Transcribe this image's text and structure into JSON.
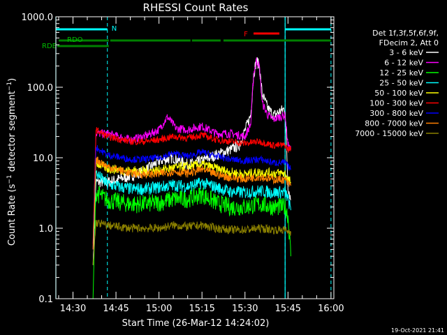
{
  "chart_data": {
    "type": "line",
    "title": "RHESSI Count Rates",
    "xlabel": "Start Time (26-Mar-12 14:24:02)",
    "ylabel": "Count Rate (s⁻¹ detector segment⁻¹)",
    "y_scale": "log",
    "ylim": [
      0.1,
      1000
    ],
    "y_ticks": [
      "0.1",
      "1.0",
      "10.0",
      "100.0",
      "1000.0"
    ],
    "xlim": [
      "14:24:02",
      "16:01:00"
    ],
    "x_ticks": [
      "14:30",
      "14:45",
      "15:00",
      "15:15",
      "15:30",
      "15:45",
      "16:00"
    ],
    "grid": false,
    "legend_position": "right",
    "legend_header": [
      "Det 1f,3f,5f,6f,9f,",
      "FDecim 2, Att 0"
    ],
    "data_window": [
      "14:37:00",
      "15:46:30"
    ],
    "series": [
      {
        "name": "3 - 6 keV",
        "color": "#ffffff",
        "points": [
          [
            "14:37",
            0.3
          ],
          [
            "14:38",
            4.5
          ],
          [
            "14:42",
            4.5
          ],
          [
            "14:50",
            5.5
          ],
          [
            "14:55",
            6.5
          ],
          [
            "15:00",
            9
          ],
          [
            "15:05",
            10
          ],
          [
            "15:10",
            8
          ],
          [
            "15:15",
            9
          ],
          [
            "15:20",
            11
          ],
          [
            "15:25",
            13
          ],
          [
            "15:28",
            15
          ],
          [
            "15:32",
            40
          ],
          [
            "15:33",
            150
          ],
          [
            "15:34",
            240
          ],
          [
            "15:35",
            200
          ],
          [
            "15:36",
            80
          ],
          [
            "15:38",
            50
          ],
          [
            "15:40",
            40
          ],
          [
            "15:42",
            45
          ],
          [
            "15:44",
            50
          ],
          [
            "15:45",
            4
          ],
          [
            "15:46",
            2.5
          ]
        ]
      },
      {
        "name": "6 - 12 keV",
        "color": "#ff00ff",
        "points": [
          [
            "14:37",
            0.6
          ],
          [
            "14:38",
            22
          ],
          [
            "14:42",
            22
          ],
          [
            "14:50",
            18
          ],
          [
            "14:55",
            20
          ],
          [
            "15:00",
            25
          ],
          [
            "15:03",
            38
          ],
          [
            "15:06",
            26
          ],
          [
            "15:10",
            25
          ],
          [
            "15:15",
            28
          ],
          [
            "15:20",
            22
          ],
          [
            "15:25",
            22
          ],
          [
            "15:30",
            20
          ],
          [
            "15:32",
            30
          ],
          [
            "15:33",
            150
          ],
          [
            "15:34",
            240
          ],
          [
            "15:35",
            200
          ],
          [
            "15:36",
            60
          ],
          [
            "15:38",
            40
          ],
          [
            "15:40",
            35
          ],
          [
            "15:42",
            38
          ],
          [
            "15:44",
            40
          ],
          [
            "15:45",
            15
          ],
          [
            "15:46",
            13
          ]
        ]
      },
      {
        "name": "12 - 25 keV",
        "color": "#00ff00",
        "points": [
          [
            "14:37",
            0.1
          ],
          [
            "14:38",
            3.2
          ],
          [
            "14:42",
            2.5
          ],
          [
            "14:50",
            2.2
          ],
          [
            "14:55",
            2.2
          ],
          [
            "15:00",
            2.3
          ],
          [
            "15:05",
            2.6
          ],
          [
            "15:10",
            2.6
          ],
          [
            "15:15",
            3.0
          ],
          [
            "15:20",
            2.3
          ],
          [
            "15:25",
            2.0
          ],
          [
            "15:30",
            2.0
          ],
          [
            "15:35",
            2.2
          ],
          [
            "15:40",
            2.0
          ],
          [
            "15:44",
            2.0
          ],
          [
            "15:45",
            1.5
          ],
          [
            "15:46",
            0.4
          ]
        ]
      },
      {
        "name": "25 - 50 keV",
        "color": "#00ffff",
        "points": [
          [
            "14:37",
            0.5
          ],
          [
            "14:38",
            6
          ],
          [
            "14:42",
            4.2
          ],
          [
            "14:50",
            3.6
          ],
          [
            "14:55",
            3.6
          ],
          [
            "15:00",
            3.8
          ],
          [
            "15:05",
            4.1
          ],
          [
            "15:10",
            3.9
          ],
          [
            "15:15",
            4.4
          ],
          [
            "15:20",
            3.8
          ],
          [
            "15:25",
            3.3
          ],
          [
            "15:30",
            3.2
          ],
          [
            "15:35",
            3.4
          ],
          [
            "15:40",
            3.2
          ],
          [
            "15:44",
            3.3
          ],
          [
            "15:45",
            2.6
          ],
          [
            "15:46",
            1.8
          ]
        ]
      },
      {
        "name": "50 - 100 keV",
        "color": "#ffff00",
        "points": [
          [
            "14:37",
            0.5
          ],
          [
            "14:38",
            8.5
          ],
          [
            "14:42",
            7
          ],
          [
            "14:50",
            6.5
          ],
          [
            "14:55",
            6.5
          ],
          [
            "15:00",
            6.6
          ],
          [
            "15:05",
            7.2
          ],
          [
            "15:10",
            7.5
          ],
          [
            "15:15",
            8
          ],
          [
            "15:20",
            7
          ],
          [
            "15:25",
            6.2
          ],
          [
            "15:30",
            5.8
          ],
          [
            "15:35",
            6.2
          ],
          [
            "15:40",
            6
          ],
          [
            "15:44",
            6
          ],
          [
            "15:45",
            5
          ],
          [
            "15:46",
            4.5
          ]
        ]
      },
      {
        "name": "100 - 300 keV",
        "color": "#ff0000",
        "points": [
          [
            "14:37",
            0.5
          ],
          [
            "14:38",
            25
          ],
          [
            "14:42",
            20
          ],
          [
            "14:50",
            17
          ],
          [
            "14:55",
            17
          ],
          [
            "15:00",
            18
          ],
          [
            "15:05",
            20
          ],
          [
            "15:10",
            19
          ],
          [
            "15:15",
            21
          ],
          [
            "15:20",
            18
          ],
          [
            "15:25",
            17
          ],
          [
            "15:30",
            16
          ],
          [
            "15:35",
            17
          ],
          [
            "15:40",
            15
          ],
          [
            "15:44",
            15
          ],
          [
            "15:45",
            13
          ],
          [
            "15:46",
            14
          ]
        ]
      },
      {
        "name": "300 - 800 keV",
        "color": "#0000ff",
        "points": [
          [
            "14:37",
            0.5
          ],
          [
            "14:38",
            14
          ],
          [
            "14:42",
            11
          ],
          [
            "14:50",
            9.5
          ],
          [
            "14:55",
            9.5
          ],
          [
            "15:00",
            10
          ],
          [
            "15:05",
            11.5
          ],
          [
            "15:10",
            10.5
          ],
          [
            "15:15",
            12
          ],
          [
            "15:20",
            10.5
          ],
          [
            "15:25",
            9.5
          ],
          [
            "15:30",
            9
          ],
          [
            "15:35",
            9.5
          ],
          [
            "15:40",
            8.5
          ],
          [
            "15:44",
            8.5
          ],
          [
            "15:45",
            7.5
          ],
          [
            "15:46",
            7
          ]
        ]
      },
      {
        "name": "800 - 7000 keV",
        "color": "#ff8000",
        "points": [
          [
            "14:37",
            0.5
          ],
          [
            "14:38",
            9.5
          ],
          [
            "14:42",
            7.5
          ],
          [
            "14:50",
            6
          ],
          [
            "14:55",
            5.8
          ],
          [
            "15:00",
            5.9
          ],
          [
            "15:05",
            6.4
          ],
          [
            "15:10",
            6
          ],
          [
            "15:15",
            6.8
          ],
          [
            "15:20",
            5.8
          ],
          [
            "15:25",
            5.2
          ],
          [
            "15:30",
            5
          ],
          [
            "15:35",
            5.4
          ],
          [
            "15:40",
            4.9
          ],
          [
            "15:44",
            4.9
          ],
          [
            "15:45",
            4.3
          ],
          [
            "15:46",
            4
          ]
        ]
      },
      {
        "name": "7000 - 15000 keV",
        "color": "#8b8000",
        "points": [
          [
            "14:37",
            0.3
          ],
          [
            "14:38",
            1.2
          ],
          [
            "14:42",
            1.1
          ],
          [
            "14:50",
            1.0
          ],
          [
            "14:55",
            1.0
          ],
          [
            "15:00",
            1.0
          ],
          [
            "15:05",
            1.1
          ],
          [
            "15:10",
            1.05
          ],
          [
            "15:15",
            1.1
          ],
          [
            "15:20",
            1.0
          ],
          [
            "15:25",
            0.95
          ],
          [
            "15:30",
            0.95
          ],
          [
            "15:35",
            1.0
          ],
          [
            "15:40",
            0.95
          ],
          [
            "15:44",
            0.95
          ],
          [
            "15:45",
            0.9
          ],
          [
            "15:46",
            0.9
          ]
        ]
      }
    ],
    "night_intervals": [
      [
        "14:24:02",
        "14:42:00"
      ],
      [
        "15:44:00",
        "16:00:00"
      ]
    ],
    "night_label": "N",
    "flare_intervals": [
      [
        "15:33:00",
        "15:42:00"
      ]
    ],
    "flare_label": "F",
    "saa_intervals": [],
    "saa_label": "",
    "attenuator_states": [],
    "rdo_label": "RDO",
    "rde_label": "RDE",
    "rdo_intervals": [
      [
        "14:25:00",
        "14:42:30"
      ],
      [
        "14:43:00",
        "15:11:00"
      ],
      [
        "15:11:30",
        "15:21:30"
      ],
      [
        "15:22:30",
        "16:00:00"
      ]
    ],
    "rde_intervals": [
      [
        "14:24:30",
        "14:26:30"
      ]
    ],
    "night_markers": [
      "14:42:00",
      "15:44:00",
      "16:00:00"
    ],
    "day_markers": [
      "14:24:02",
      "15:44:00"
    ]
  },
  "timestamp": "19-Oct-2021 21:41"
}
